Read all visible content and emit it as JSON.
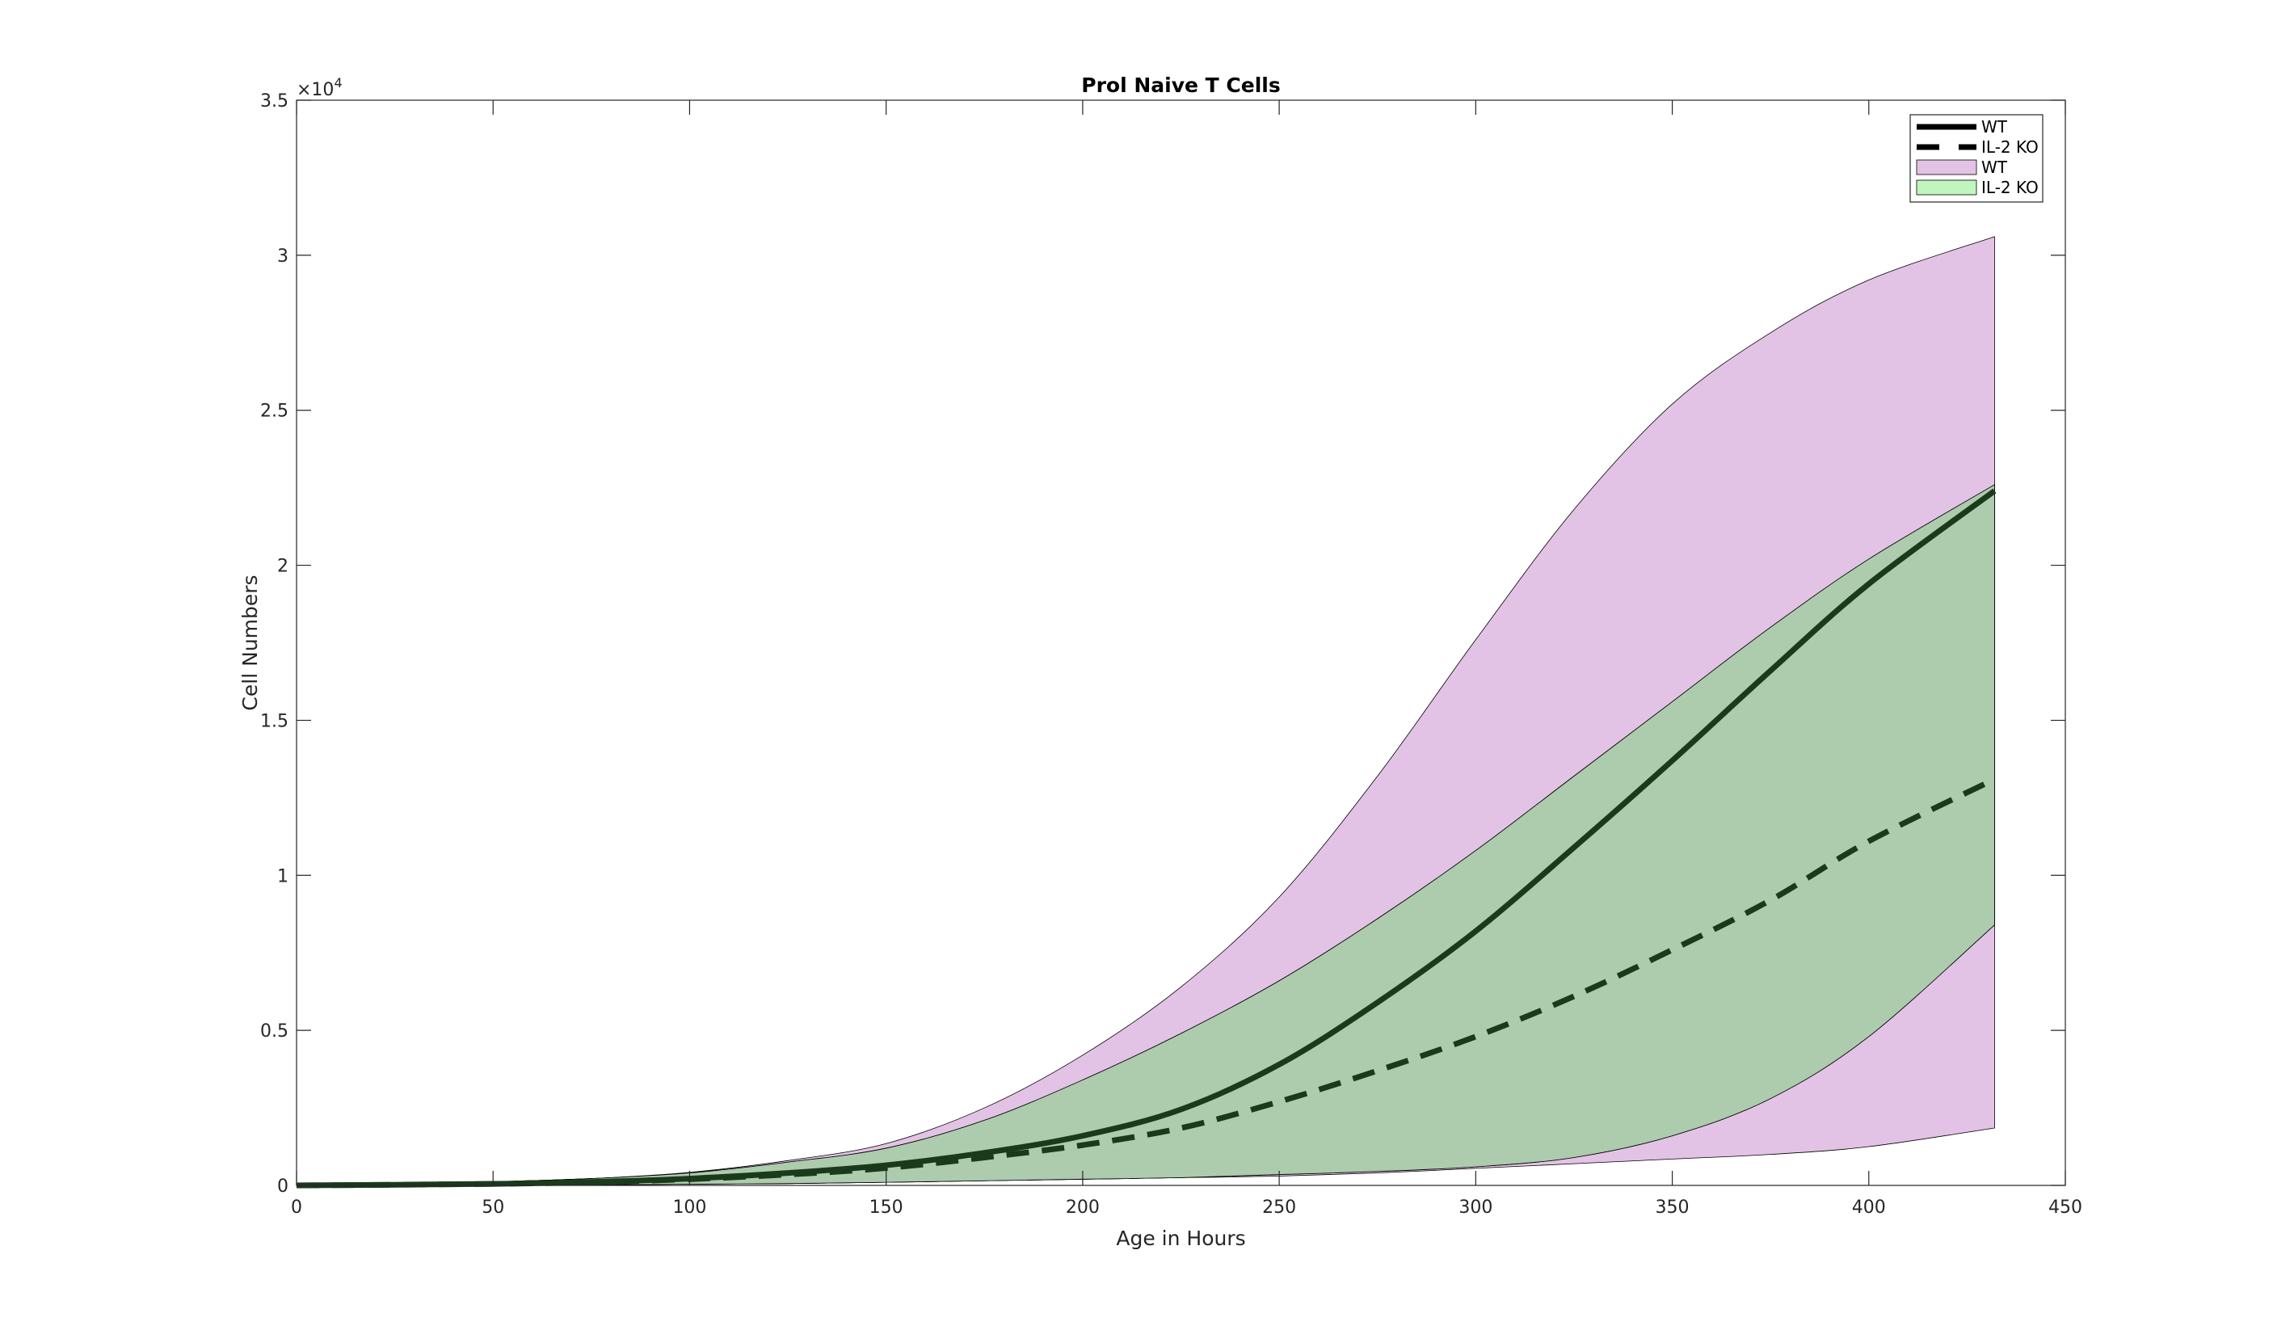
{
  "chart_data": {
    "type": "line",
    "title": "Prol Naive T Cells",
    "xlabel": "Age in Hours",
    "ylabel": "Cell Numbers",
    "xlim": [
      0,
      450
    ],
    "ylim": [
      0,
      35000
    ],
    "y_exponent_label": "×10",
    "y_exponent_power": "4",
    "xticks": [
      0,
      50,
      100,
      150,
      200,
      250,
      300,
      350,
      400,
      450
    ],
    "xtick_labels": [
      "0",
      "50",
      "100",
      "150",
      "200",
      "250",
      "300",
      "350",
      "400",
      "450"
    ],
    "yticks": [
      0,
      5000,
      10000,
      15000,
      20000,
      25000,
      30000,
      35000
    ],
    "ytick_labels": [
      "0",
      "0.5",
      "1",
      "1.5",
      "2",
      "2.5",
      "3",
      "3.5"
    ],
    "legend_position": "top-right",
    "legend": [
      {
        "label": "WT",
        "kind": "solid-line"
      },
      {
        "label": "IL-2 KO",
        "kind": "dashed-line"
      },
      {
        "label": "WT",
        "kind": "patch",
        "color": "#e3c3e5"
      },
      {
        "label": "IL-2 KO",
        "kind": "patch",
        "color": "#c1f5bf"
      }
    ],
    "colors": {
      "wt_band": "#e3c3e5",
      "ko_band": "#c1f5bf",
      "overlap": "#adcbad",
      "line": "#1b3a1b"
    },
    "x": [
      0,
      25,
      50,
      75,
      100,
      125,
      150,
      175,
      200,
      225,
      250,
      275,
      300,
      325,
      350,
      375,
      400,
      432
    ],
    "series": [
      {
        "name": "WT",
        "style": "solid",
        "values": [
          0,
          20,
          50,
          110,
          220,
          400,
          650,
          1050,
          1600,
          2450,
          3900,
          5900,
          8200,
          10900,
          13700,
          16600,
          19400,
          22400
        ]
      },
      {
        "name": "IL-2 KO",
        "style": "dashed",
        "values": [
          0,
          20,
          50,
          100,
          200,
          350,
          560,
          900,
          1300,
          1850,
          2700,
          3700,
          4800,
          6100,
          7600,
          9200,
          11100,
          13100
        ]
      }
    ],
    "bands": [
      {
        "name": "WT",
        "upper": [
          30,
          60,
          120,
          220,
          420,
          800,
          1350,
          2500,
          4200,
          6400,
          9300,
          13200,
          17600,
          21800,
          25200,
          27500,
          29200,
          30600
        ],
        "lower": [
          0,
          5,
          10,
          20,
          40,
          60,
          100,
          150,
          200,
          250,
          300,
          400,
          550,
          700,
          850,
          1000,
          1250,
          1850
        ]
      },
      {
        "name": "IL-2 KO",
        "upper": [
          30,
          60,
          120,
          220,
          400,
          750,
          1200,
          2100,
          3400,
          4900,
          6600,
          8600,
          10800,
          13200,
          15600,
          18000,
          20200,
          22600
        ],
        "lower": [
          0,
          5,
          10,
          20,
          40,
          60,
          100,
          150,
          200,
          250,
          350,
          450,
          600,
          900,
          1600,
          2800,
          4800,
          8400
        ]
      }
    ]
  }
}
